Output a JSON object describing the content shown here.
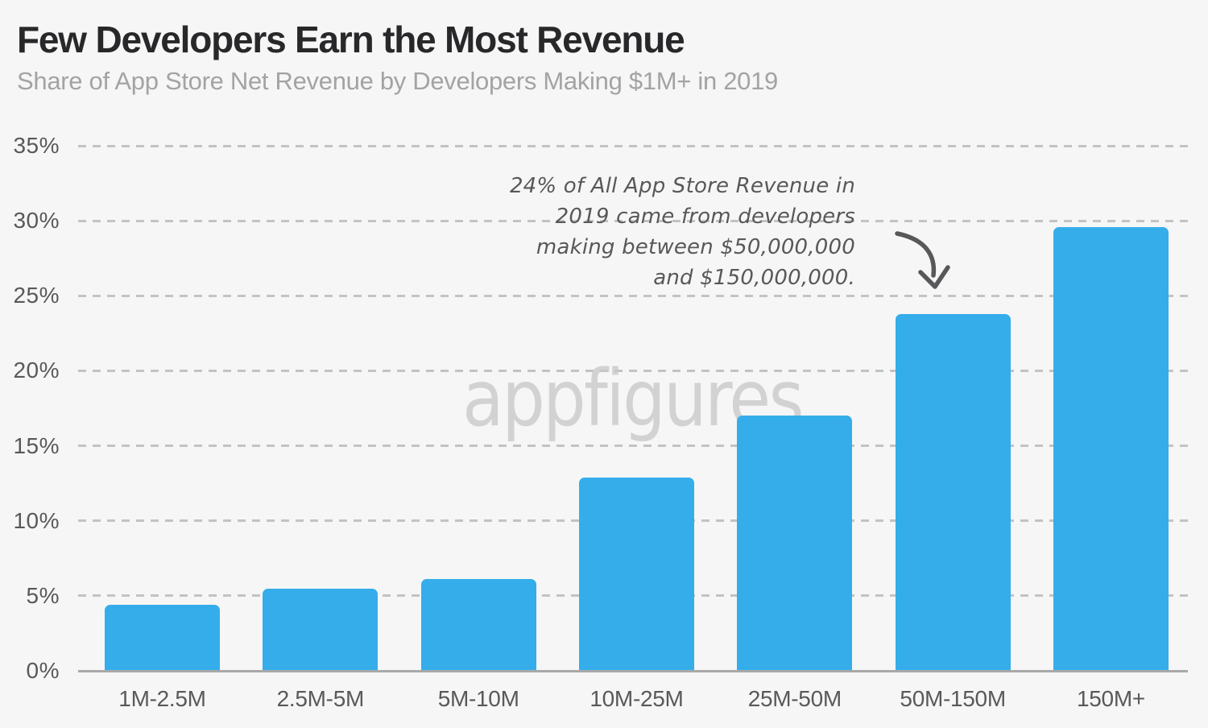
{
  "header": {
    "title": "Few Developers Earn the Most Revenue",
    "subtitle": "Share of App Store Net Revenue by Developers Making $1M+ in 2019"
  },
  "watermark": "appfigures",
  "annotation": {
    "lines": [
      "24% of All App Store Revenue in",
      "2019 came from developers",
      "making between $50,000,000",
      "and $150,000,000."
    ],
    "full_text": "24% of All App Store Revenue in 2019 came from developers making between $50,000,000 and $150,000,000.",
    "target_category": "50M-150M"
  },
  "colors": {
    "bar": "#35ADEA",
    "background": "#f6f6f6",
    "title": "#28282a",
    "subtitle": "#a3a3a3",
    "tick_label": "#59595b",
    "gridline": "#c3c3c3",
    "axis_line": "#a9a9a9",
    "annotation_text": "#58585a",
    "watermark": "#c7c7c7"
  },
  "chart_data": {
    "type": "bar",
    "title": "Few Developers Earn the Most Revenue",
    "subtitle": "Share of App Store Net Revenue by Developers Making $1M+ in 2019",
    "categories": [
      "1M-2.5M",
      "2.5M-5M",
      "5M-10M",
      "10M-25M",
      "25M-50M",
      "50M-150M",
      "150M+"
    ],
    "values": [
      4.4,
      5.5,
      6.1,
      12.9,
      17.0,
      23.8,
      29.6
    ],
    "value_unit": "percent",
    "xlabel": "",
    "ylabel": "",
    "ylim": [
      0,
      35
    ],
    "ytick_step": 5,
    "ytick_labels": [
      "0%",
      "5%",
      "10%",
      "15%",
      "20%",
      "25%",
      "30%",
      "35%"
    ],
    "grid": "horizontal-dashed",
    "legend": "none"
  }
}
